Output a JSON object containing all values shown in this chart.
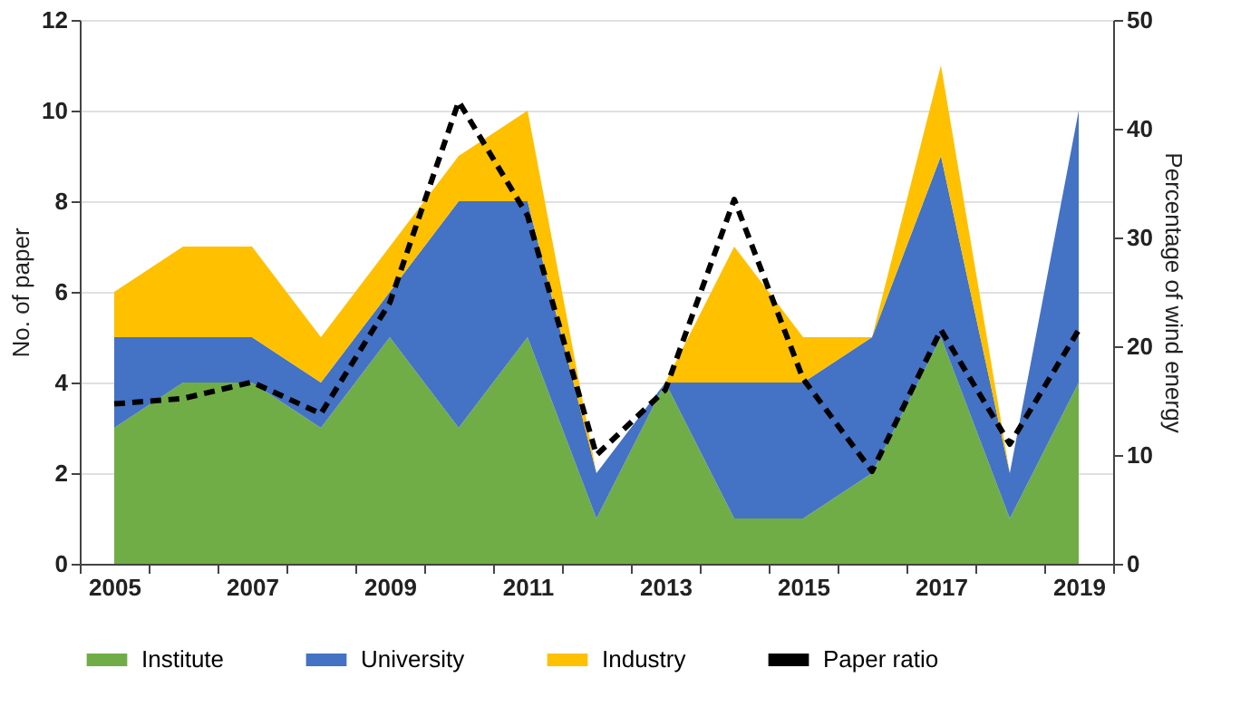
{
  "chart_data": {
    "type": "area",
    "stacked": true,
    "categories": [
      "2005",
      null,
      "2007",
      null,
      "2009",
      null,
      "2011",
      null,
      "2013",
      null,
      "2015",
      null,
      "2017",
      null,
      "2019"
    ],
    "ylabel": "No. of paper",
    "y2label": "Percentage of wind energy",
    "ylim": [
      0,
      12
    ],
    "yticks": [
      0,
      2,
      4,
      6,
      8,
      10,
      12
    ],
    "y2lim": [
      0,
      50
    ],
    "y2ticks": [
      0,
      10,
      20,
      30,
      40,
      50
    ],
    "grid": "y",
    "legend": "bottom",
    "series": [
      {
        "name": "Institute",
        "color": "#70ad47",
        "values": [
          3,
          4,
          4,
          3,
          5,
          3,
          5,
          1,
          4,
          1,
          1,
          2,
          5,
          1,
          4
        ]
      },
      {
        "name": "University",
        "color": "#4472c4",
        "values": [
          2,
          1,
          1,
          1,
          1,
          5,
          3,
          1,
          0,
          3,
          3,
          3,
          4,
          1,
          6
        ]
      },
      {
        "name": "Industry",
        "color": "#ffc000",
        "values": [
          1,
          2,
          2,
          1,
          1,
          1,
          2,
          0,
          0,
          3,
          1,
          0,
          2,
          0,
          0
        ]
      },
      {
        "name": "Paper ratio",
        "type": "line",
        "axis": "y2",
        "color": "#000000",
        "line_style": "dashed",
        "marker": "none",
        "values": [
          14.7,
          15.2,
          16.7,
          13.8,
          24,
          42.5,
          32,
          10,
          16,
          33.5,
          17,
          8.5,
          21.5,
          11,
          21.5
        ]
      }
    ]
  }
}
